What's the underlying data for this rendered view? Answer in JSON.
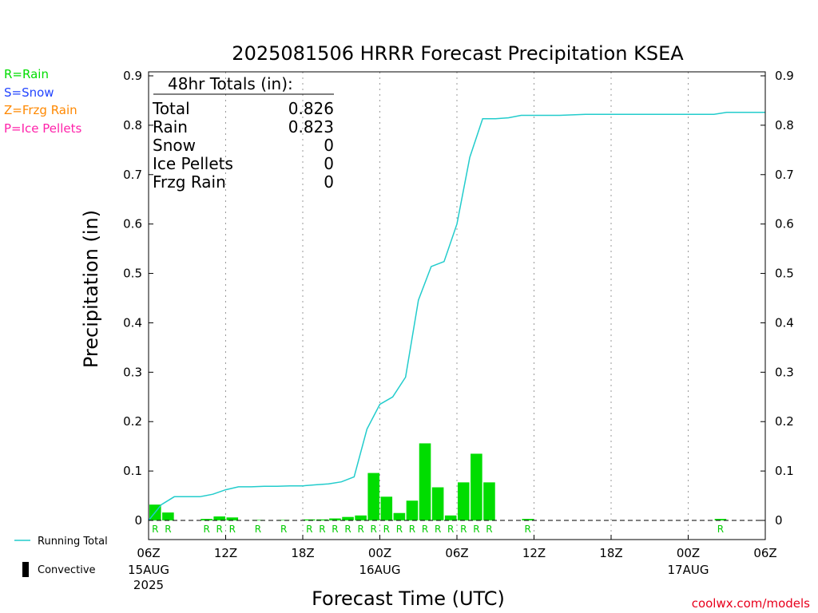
{
  "legend_types": [
    {
      "label": "R=Rain",
      "color": "#00dd00"
    },
    {
      "label": "S=Snow",
      "color": "#2244ff"
    },
    {
      "label": "Z=Frzg Rain",
      "color": "#ff8800"
    },
    {
      "label": "P=Ice Pellets",
      "color": "#ff22aa"
    }
  ],
  "colors": {
    "bars": "#00dd00",
    "running_total": "#22cccc",
    "credit": "#e8001c"
  },
  "legend_bottom": {
    "running_total": "Running Total",
    "convective": "Convective"
  },
  "credit": "coolwx.com/models",
  "totals_box": {
    "header": "48hr Totals (in):",
    "rows": [
      {
        "label": "Total",
        "value": "0.826"
      },
      {
        "label": "Rain",
        "value": "0.823"
      },
      {
        "label": "Snow",
        "value": "0"
      },
      {
        "label": "Ice Pellets",
        "value": "0"
      },
      {
        "label": "Frzg Rain",
        "value": "0"
      }
    ]
  },
  "chart_data": {
    "type": "bar",
    "title": "2025081506 HRRR Forecast Precipitation KSEA",
    "xlabel": "Forecast Time (UTC)",
    "ylabel": "Precipitation (in)",
    "ylim": [
      0,
      0.9
    ],
    "yticks": [
      0,
      0.1,
      0.2,
      0.3,
      0.4,
      0.5,
      0.6,
      0.7,
      0.8,
      0.9
    ],
    "ytick_labels": [
      "0",
      "0.1",
      "0.2",
      "0.3",
      "0.4",
      "0.5",
      "0.6",
      "0.7",
      "0.8",
      "0.9"
    ],
    "xlim_hours": [
      0,
      48
    ],
    "xticks": [
      {
        "hour": 0,
        "label": "06Z",
        "sub": [
          "15AUG",
          "2025"
        ]
      },
      {
        "hour": 6,
        "label": "12Z",
        "sub": []
      },
      {
        "hour": 12,
        "label": "18Z",
        "sub": []
      },
      {
        "hour": 18,
        "label": "00Z",
        "sub": [
          "16AUG"
        ]
      },
      {
        "hour": 24,
        "label": "06Z",
        "sub": []
      },
      {
        "hour": 30,
        "label": "12Z",
        "sub": []
      },
      {
        "hour": 36,
        "label": "18Z",
        "sub": []
      },
      {
        "hour": 42,
        "label": "00Z",
        "sub": [
          "17AUG"
        ]
      },
      {
        "hour": 48,
        "label": "06Z",
        "sub": []
      }
    ],
    "grid_vertical_dotted": true,
    "hourly_precip": [
      {
        "hour": 1,
        "value": 0.032,
        "type": "R"
      },
      {
        "hour": 2,
        "value": 0.016,
        "type": "R"
      },
      {
        "hour": 3,
        "value": 0.0,
        "type": ""
      },
      {
        "hour": 4,
        "value": 0.0,
        "type": ""
      },
      {
        "hour": 5,
        "value": 0.003,
        "type": "R"
      },
      {
        "hour": 6,
        "value": 0.008,
        "type": "R"
      },
      {
        "hour": 7,
        "value": 0.006,
        "type": "R"
      },
      {
        "hour": 8,
        "value": 0.0,
        "type": ""
      },
      {
        "hour": 9,
        "value": 0.001,
        "type": "R"
      },
      {
        "hour": 10,
        "value": 0.0,
        "type": ""
      },
      {
        "hour": 11,
        "value": 0.001,
        "type": "R"
      },
      {
        "hour": 12,
        "value": 0.0,
        "type": ""
      },
      {
        "hour": 13,
        "value": 0.002,
        "type": "R"
      },
      {
        "hour": 14,
        "value": 0.002,
        "type": "R"
      },
      {
        "hour": 15,
        "value": 0.004,
        "type": "R"
      },
      {
        "hour": 16,
        "value": 0.007,
        "type": "R"
      },
      {
        "hour": 17,
        "value": 0.01,
        "type": "R"
      },
      {
        "hour": 18,
        "value": 0.096,
        "type": "R"
      },
      {
        "hour": 19,
        "value": 0.048,
        "type": "R"
      },
      {
        "hour": 20,
        "value": 0.015,
        "type": "R"
      },
      {
        "hour": 21,
        "value": 0.04,
        "type": "R"
      },
      {
        "hour": 22,
        "value": 0.156,
        "type": "R"
      },
      {
        "hour": 23,
        "value": 0.067,
        "type": "R"
      },
      {
        "hour": 24,
        "value": 0.01,
        "type": "R"
      },
      {
        "hour": 25,
        "value": 0.077,
        "type": "R"
      },
      {
        "hour": 26,
        "value": 0.135,
        "type": "R"
      },
      {
        "hour": 27,
        "value": 0.077,
        "type": "R"
      },
      {
        "hour": 28,
        "value": 0.0,
        "type": ""
      },
      {
        "hour": 29,
        "value": 0.0,
        "type": ""
      },
      {
        "hour": 30,
        "value": 0.003,
        "type": "R"
      },
      {
        "hour": 45,
        "value": 0.003,
        "type": "R"
      }
    ],
    "running_total": [
      {
        "hour": 0,
        "value": 0.0
      },
      {
        "hour": 1,
        "value": 0.032
      },
      {
        "hour": 2,
        "value": 0.048
      },
      {
        "hour": 3,
        "value": 0.048
      },
      {
        "hour": 4,
        "value": 0.048
      },
      {
        "hour": 5,
        "value": 0.053
      },
      {
        "hour": 6,
        "value": 0.062
      },
      {
        "hour": 7,
        "value": 0.068
      },
      {
        "hour": 8,
        "value": 0.068
      },
      {
        "hour": 9,
        "value": 0.069
      },
      {
        "hour": 10,
        "value": 0.069
      },
      {
        "hour": 11,
        "value": 0.07
      },
      {
        "hour": 12,
        "value": 0.07
      },
      {
        "hour": 13,
        "value": 0.072
      },
      {
        "hour": 14,
        "value": 0.074
      },
      {
        "hour": 15,
        "value": 0.078
      },
      {
        "hour": 16,
        "value": 0.088
      },
      {
        "hour": 17,
        "value": 0.185
      },
      {
        "hour": 18,
        "value": 0.235
      },
      {
        "hour": 19,
        "value": 0.25
      },
      {
        "hour": 20,
        "value": 0.29
      },
      {
        "hour": 21,
        "value": 0.446
      },
      {
        "hour": 22,
        "value": 0.514
      },
      {
        "hour": 23,
        "value": 0.524
      },
      {
        "hour": 24,
        "value": 0.6
      },
      {
        "hour": 25,
        "value": 0.735
      },
      {
        "hour": 26,
        "value": 0.813
      },
      {
        "hour": 27,
        "value": 0.813
      },
      {
        "hour": 28,
        "value": 0.815
      },
      {
        "hour": 29,
        "value": 0.82
      },
      {
        "hour": 30,
        "value": 0.82
      },
      {
        "hour": 32,
        "value": 0.82
      },
      {
        "hour": 34,
        "value": 0.822
      },
      {
        "hour": 42,
        "value": 0.822
      },
      {
        "hour": 44,
        "value": 0.822
      },
      {
        "hour": 45,
        "value": 0.826
      },
      {
        "hour": 48,
        "value": 0.826
      }
    ]
  }
}
